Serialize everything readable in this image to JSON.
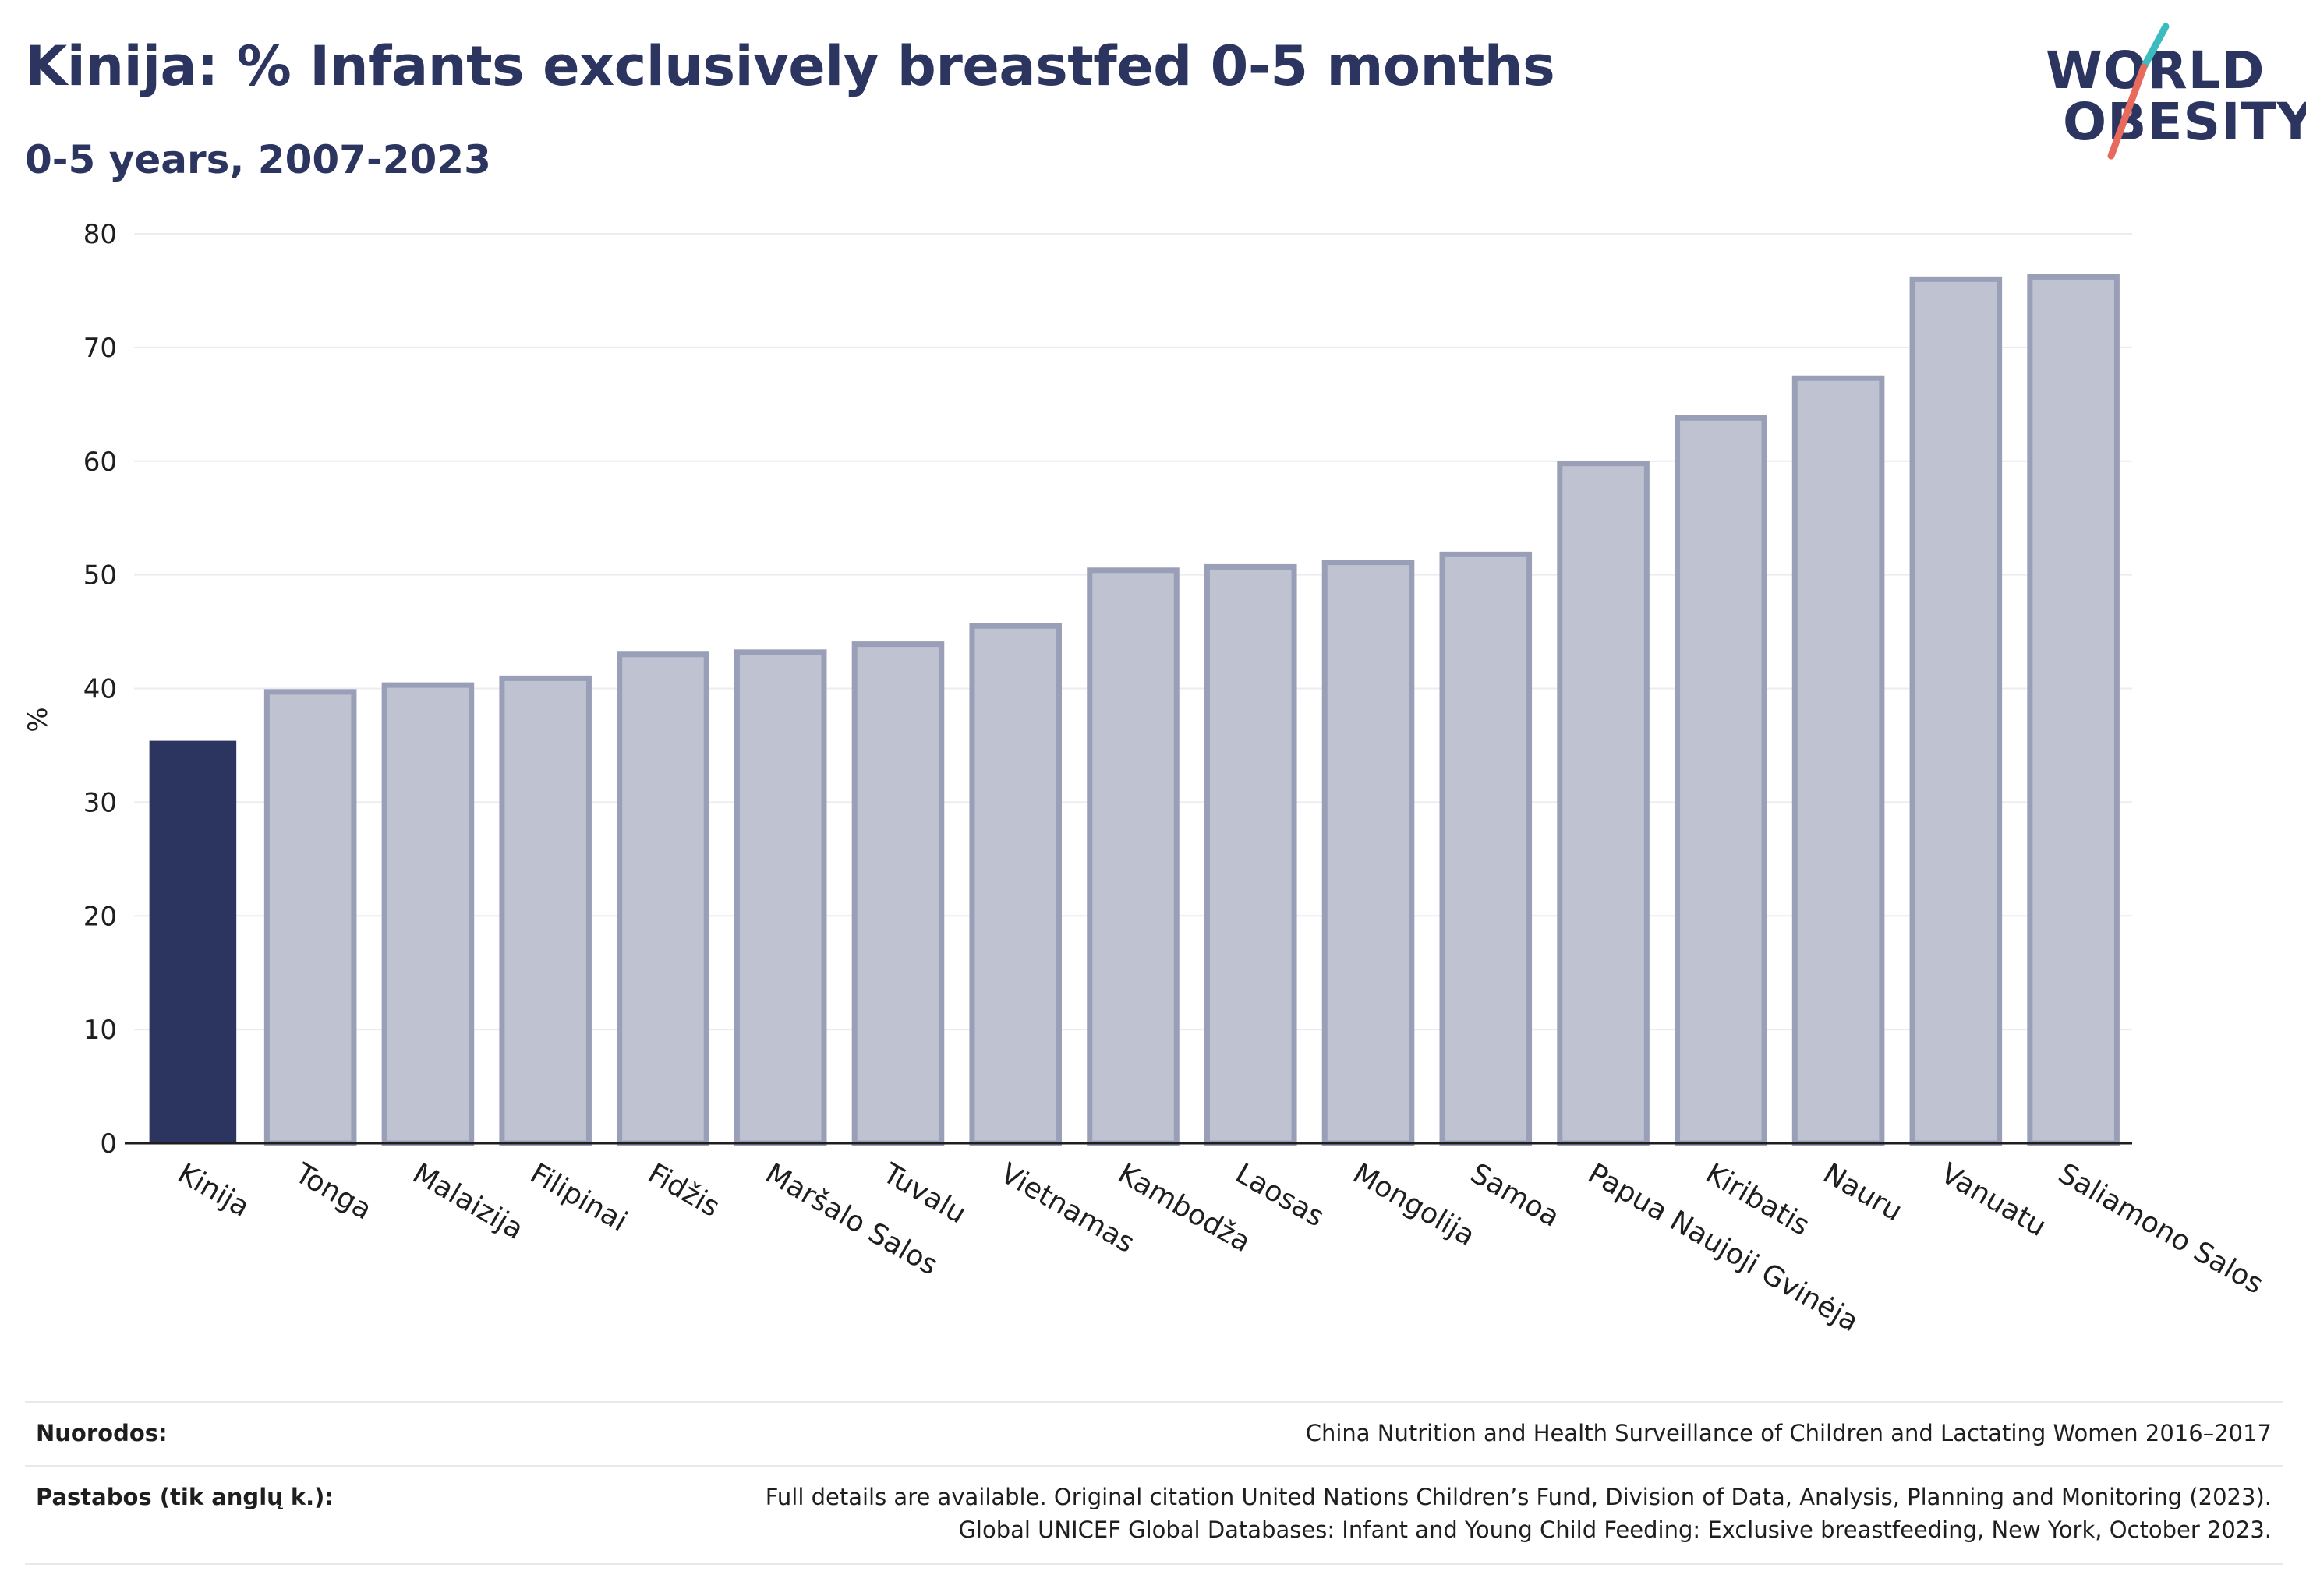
{
  "header": {
    "title": "Kinija: % Infants exclusively breastfed 0-5 months",
    "subtitle": "0-5 years, 2007-2023"
  },
  "logo": {
    "line1": "WORLD",
    "line2": "OBESITY",
    "slash_colors": [
      "#3bbcbf",
      "#e86a5c"
    ]
  },
  "chart_data": {
    "type": "bar",
    "categories": [
      "Kinija",
      "Tonga",
      "Malaizija",
      "Filipinai",
      "Fidžis",
      "Maršalo Salos",
      "Tuvalu",
      "Vietnamas",
      "Kambodža",
      "Laosas",
      "Mongolija",
      "Samoa",
      "Papua Naujoji Gvinėja",
      "Kiribatis",
      "Nauru",
      "Vanuatu",
      "Saliamono Salos"
    ],
    "values": [
      35.4,
      39.7,
      40.3,
      40.9,
      43.0,
      43.2,
      43.9,
      45.5,
      50.4,
      50.7,
      51.1,
      51.8,
      59.8,
      63.8,
      67.3,
      76.0,
      76.2
    ],
    "highlight_index": 0,
    "highlight_color": "#2c3560",
    "bar_color": "#bfc2d0",
    "bar_border_color": "#9a9fb8",
    "title": "Kinija: % Infants exclusively breastfed 0-5 months",
    "subtitle": "0-5 years, 2007-2023",
    "xlabel": "",
    "ylabel": "%",
    "ylim": [
      0,
      80
    ],
    "yticks": [
      0,
      10,
      20,
      30,
      40,
      50,
      60,
      70,
      80
    ],
    "grid": true,
    "legend": "none"
  },
  "footer": {
    "sources_label": "Nuorodos:",
    "sources_text": "China Nutrition and Health Surveillance of Children and Lactating Women 2016–2017",
    "notes_label": "Pastabos (tik anglų k.):",
    "notes_line1": "Full details are available. Original citation United Nations Children’s Fund, Division of Data, Analysis, Planning and Monitoring (2023).",
    "notes_line2": "Global UNICEF Global Databases: Infant and Young Child Feeding: Exclusive breastfeeding, New York, October 2023."
  }
}
